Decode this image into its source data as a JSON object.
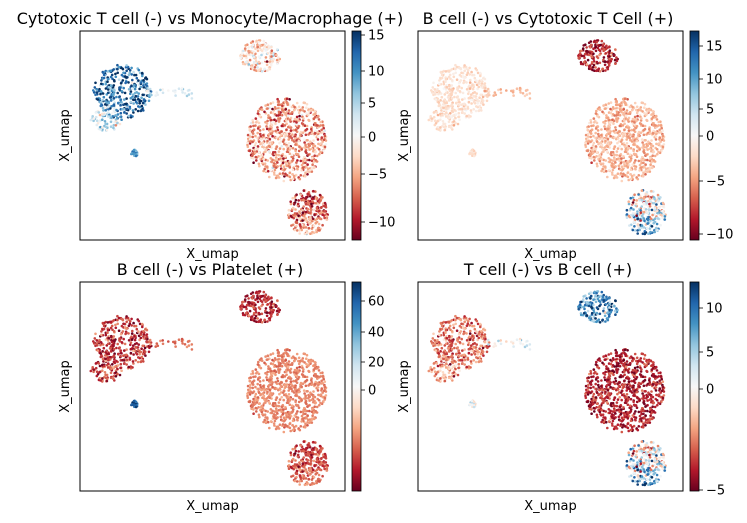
{
  "chart_data": [
    {
      "type": "scatter",
      "title": "Cytotoxic T cell (-) vs Monocyte/Macrophage (+)",
      "xlabel": "X_umap",
      "ylabel": "X_umap",
      "colormap": "RdBu",
      "colorbar": {
        "ticks": [
          15,
          10,
          5,
          0,
          -5,
          -10
        ],
        "range": [
          -12,
          15.5
        ],
        "scale": "linear"
      },
      "clusters": [
        {
          "name": "left-cluster",
          "mean_value": 12,
          "spread": 4
        },
        {
          "name": "left-lower",
          "mean_value": 5,
          "spread": 3
        },
        {
          "name": "bridge",
          "mean_value": 4,
          "spread": 2
        },
        {
          "name": "small-dot",
          "mean_value": 10,
          "spread": 2
        },
        {
          "name": "top-right",
          "mean_value": -1,
          "spread": 4
        },
        {
          "name": "right-large",
          "mean_value": -4,
          "spread": 3
        },
        {
          "name": "right-tail",
          "mean_value": -6,
          "spread": 3
        }
      ]
    },
    {
      "type": "scatter",
      "title": "B cell (-) vs Cytotoxic T Cell (+)",
      "xlabel": "X_umap",
      "ylabel": "X_umap",
      "colormap": "RdBu",
      "colorbar": {
        "ticks": [
          15,
          10,
          5,
          0,
          -5,
          -10
        ],
        "range": [
          -11,
          18
        ],
        "scale": "nonlinear"
      },
      "clusters": [
        {
          "name": "left-cluster",
          "mean_value": 1,
          "spread": 1
        },
        {
          "name": "left-lower",
          "mean_value": 1,
          "spread": 1
        },
        {
          "name": "bridge",
          "mean_value": -1,
          "spread": 1
        },
        {
          "name": "small-dot",
          "mean_value": 1,
          "spread": 1
        },
        {
          "name": "top-right",
          "mean_value": -8,
          "spread": 3
        },
        {
          "name": "right-large",
          "mean_value": -1.5,
          "spread": 1.5
        },
        {
          "name": "right-tail",
          "mean_value": 6,
          "spread": 6
        }
      ]
    },
    {
      "type": "scatter",
      "title": "B cell (-) vs Platelet (+)",
      "xlabel": "X_umap",
      "ylabel": "X_umap",
      "colormap": "RdBu",
      "colorbar": {
        "ticks": [
          60,
          40,
          20,
          0
        ],
        "range": [
          -25,
          72
        ],
        "scale": "nonlinear"
      },
      "clusters": [
        {
          "name": "left-cluster",
          "mean_value": -12,
          "spread": 8
        },
        {
          "name": "left-lower",
          "mean_value": -10,
          "spread": 8
        },
        {
          "name": "bridge",
          "mean_value": -3,
          "spread": 4
        },
        {
          "name": "small-dot",
          "mean_value": 65,
          "spread": 6
        },
        {
          "name": "top-right",
          "mean_value": -14,
          "spread": 8
        },
        {
          "name": "right-large",
          "mean_value": 0,
          "spread": 3
        },
        {
          "name": "right-tail",
          "mean_value": -7,
          "spread": 6
        }
      ]
    },
    {
      "type": "scatter",
      "title": "T cell (-) vs B cell (+)",
      "xlabel": "X_umap",
      "ylabel": "X_umap",
      "colormap": "RdBu",
      "colorbar": {
        "ticks": [
          10,
          5,
          0,
          -5
        ],
        "range": [
          -5.5,
          12.5
        ],
        "scale": "nonlinear"
      },
      "clusters": [
        {
          "name": "left-cluster",
          "mean_value": -1.5,
          "spread": 1.5
        },
        {
          "name": "left-lower",
          "mean_value": 0,
          "spread": 1.5
        },
        {
          "name": "bridge",
          "mean_value": 4,
          "spread": 2
        },
        {
          "name": "small-dot",
          "mean_value": 4,
          "spread": 2
        },
        {
          "name": "top-right",
          "mean_value": 9,
          "spread": 3
        },
        {
          "name": "right-large",
          "mean_value": -3.5,
          "spread": 1.2
        },
        {
          "name": "right-tail",
          "mean_value": 5,
          "spread": 4
        }
      ]
    }
  ]
}
